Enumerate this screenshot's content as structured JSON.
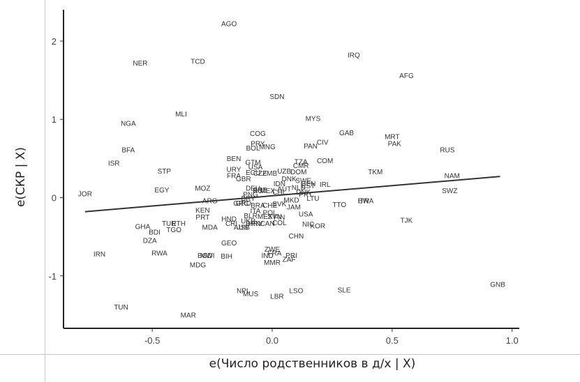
{
  "chart_data": {
    "type": "scatter",
    "xlabel": "e(Число родственников в д/х | X)",
    "ylabel": "e(СКР | X)",
    "xlim": [
      -0.87,
      1.03
    ],
    "ylim": [
      -1.67,
      2.4
    ],
    "xticks": [
      "-0.5",
      "0.0",
      "0.5",
      "1.0"
    ],
    "yticks": [
      "2",
      "1",
      "0",
      "-1"
    ],
    "grid": false,
    "fit_line": {
      "x": [
        -0.78,
        0.95
      ],
      "y": [
        -0.18,
        0.27
      ]
    },
    "points": [
      {
        "label": "AGO",
        "x": -0.18,
        "y": 2.22
      },
      {
        "label": "NER",
        "x": -0.55,
        "y": 1.72
      },
      {
        "label": "TCD",
        "x": -0.31,
        "y": 1.74
      },
      {
        "label": "IRQ",
        "x": 0.34,
        "y": 1.82
      },
      {
        "label": "AFG",
        "x": 0.56,
        "y": 1.56
      },
      {
        "label": "SDN",
        "x": 0.02,
        "y": 1.29
      },
      {
        "label": "MLI",
        "x": -0.38,
        "y": 1.07
      },
      {
        "label": "NGA",
        "x": -0.6,
        "y": 0.95
      },
      {
        "label": "MYS",
        "x": 0.17,
        "y": 1.01
      },
      {
        "label": "GAB",
        "x": 0.31,
        "y": 0.83
      },
      {
        "label": "COG",
        "x": -0.06,
        "y": 0.82
      },
      {
        "label": "MRT",
        "x": 0.5,
        "y": 0.78
      },
      {
        "label": "PAK",
        "x": 0.51,
        "y": 0.69
      },
      {
        "label": "PRY",
        "x": -0.06,
        "y": 0.69
      },
      {
        "label": "CIV",
        "x": 0.21,
        "y": 0.71
      },
      {
        "label": "BOL",
        "x": -0.08,
        "y": 0.63
      },
      {
        "label": "MNG",
        "x": -0.02,
        "y": 0.65
      },
      {
        "label": "PAN",
        "x": 0.16,
        "y": 0.66
      },
      {
        "label": "BFA",
        "x": -0.6,
        "y": 0.61
      },
      {
        "label": "RUS",
        "x": 0.73,
        "y": 0.61
      },
      {
        "label": "BEN",
        "x": -0.16,
        "y": 0.5
      },
      {
        "label": "TZA",
        "x": 0.12,
        "y": 0.46
      },
      {
        "label": "COM",
        "x": 0.22,
        "y": 0.47
      },
      {
        "label": "ISR",
        "x": -0.66,
        "y": 0.44
      },
      {
        "label": "GTM",
        "x": -0.08,
        "y": 0.45
      },
      {
        "label": "CMR",
        "x": 0.12,
        "y": 0.41
      },
      {
        "label": "USA_top",
        "x": -0.07,
        "y": 0.39
      },
      {
        "label": "STP",
        "x": -0.45,
        "y": 0.34
      },
      {
        "label": "URY",
        "x": -0.16,
        "y": 0.36
      },
      {
        "label": "UZB",
        "x": 0.05,
        "y": 0.34
      },
      {
        "label": "TKM",
        "x": 0.43,
        "y": 0.33
      },
      {
        "label": "DOM",
        "x": 0.11,
        "y": 0.33
      },
      {
        "label": "ECU",
        "x": -0.08,
        "y": 0.32
      },
      {
        "label": "CZE",
        "x": -0.05,
        "y": 0.31
      },
      {
        "label": "ZMB",
        "x": -0.01,
        "y": 0.31
      },
      {
        "label": "FRA",
        "x": -0.16,
        "y": 0.28
      },
      {
        "label": "NAM",
        "x": 0.75,
        "y": 0.28
      },
      {
        "label": "GBR",
        "x": -0.12,
        "y": 0.24
      },
      {
        "label": "DNK",
        "x": 0.07,
        "y": 0.24
      },
      {
        "label": "SWE",
        "x": 0.13,
        "y": 0.22
      },
      {
        "label": "IDN",
        "x": 0.03,
        "y": 0.18
      },
      {
        "label": "IRL",
        "x": 0.22,
        "y": 0.17
      },
      {
        "label": "GEN",
        "x": 0.15,
        "y": 0.18
      },
      {
        "label": "EST",
        "x": 0.15,
        "y": 0.15
      },
      {
        "label": "MOZ",
        "x": -0.29,
        "y": 0.12
      },
      {
        "label": "EGY",
        "x": -0.46,
        "y": 0.1
      },
      {
        "label": "NLD",
        "x": 0.11,
        "y": 0.13
      },
      {
        "label": "SWZ",
        "x": 0.74,
        "y": 0.09
      },
      {
        "label": "JOR",
        "x": -0.78,
        "y": 0.05
      },
      {
        "label": "DEU",
        "x": -0.08,
        "y": 0.12
      },
      {
        "label": "AUT",
        "x": 0.05,
        "y": 0.11
      },
      {
        "label": "SRB",
        "x": -0.05,
        "y": 0.1
      },
      {
        "label": "MEX",
        "x": -0.02,
        "y": 0.09
      },
      {
        "label": "RU",
        "x": -0.06,
        "y": 0.09
      },
      {
        "label": "CHL",
        "x": 0.03,
        "y": 0.07
      },
      {
        "label": "DNK2",
        "x": 0.13,
        "y": 0.07
      },
      {
        "label": "PNG",
        "x": -0.09,
        "y": 0.04
      },
      {
        "label": "PRT_b",
        "x": 0.14,
        "y": 0.04
      },
      {
        "label": "BRY",
        "x": -0.1,
        "y": -0.01
      },
      {
        "label": "LTU",
        "x": 0.17,
        "y": -0.01
      },
      {
        "label": "MKD",
        "x": 0.08,
        "y": -0.03
      },
      {
        "label": "BWA",
        "x": 0.39,
        "y": -0.04
      },
      {
        "label": "ITR",
        "x": 0.38,
        "y": -0.04
      },
      {
        "label": "ARG",
        "x": -0.26,
        "y": -0.04
      },
      {
        "label": "GRC",
        "x": -0.13,
        "y": -0.07
      },
      {
        "label": "GRD",
        "x": -0.12,
        "y": -0.07
      },
      {
        "label": "SVK",
        "x": 0.03,
        "y": -0.08
      },
      {
        "label": "TTO",
        "x": 0.28,
        "y": -0.09
      },
      {
        "label": "BRA",
        "x": -0.06,
        "y": -0.1
      },
      {
        "label": "CHE",
        "x": -0.01,
        "y": -0.1
      },
      {
        "label": "JAM",
        "x": 0.09,
        "y": -0.12
      },
      {
        "label": "KEN",
        "x": -0.29,
        "y": -0.16
      },
      {
        "label": "ITA",
        "x": -0.07,
        "y": -0.17
      },
      {
        "label": "POL",
        "x": -0.01,
        "y": -0.19
      },
      {
        "label": "USA",
        "x": 0.14,
        "y": -0.21
      },
      {
        "label": "BLR",
        "x": -0.09,
        "y": -0.23
      },
      {
        "label": "MEX2",
        "x": -0.03,
        "y": -0.24
      },
      {
        "label": "SVN",
        "x": 0.01,
        "y": -0.24
      },
      {
        "label": "PRT",
        "x": -0.29,
        "y": -0.25
      },
      {
        "label": "FIN",
        "x": 0.03,
        "y": -0.25
      },
      {
        "label": "HND",
        "x": -0.18,
        "y": -0.27
      },
      {
        "label": "UKR",
        "x": -0.1,
        "y": -0.3
      },
      {
        "label": "TJK",
        "x": 0.56,
        "y": -0.29
      },
      {
        "label": "TUR",
        "x": -0.43,
        "y": -0.33
      },
      {
        "label": "ETH",
        "x": -0.39,
        "y": -0.33
      },
      {
        "label": "CRI",
        "x": -0.17,
        "y": -0.33
      },
      {
        "label": "BRN",
        "x": -0.08,
        "y": -0.33
      },
      {
        "label": "HRV",
        "x": -0.07,
        "y": -0.33
      },
      {
        "label": "CAN",
        "x": -0.02,
        "y": -0.33
      },
      {
        "label": "COL",
        "x": 0.03,
        "y": -0.32
      },
      {
        "label": "NIC",
        "x": 0.15,
        "y": -0.34
      },
      {
        "label": "KOR",
        "x": 0.19,
        "y": -0.36
      },
      {
        "label": "GHA",
        "x": -0.54,
        "y": -0.37
      },
      {
        "label": "MDA",
        "x": -0.26,
        "y": -0.38
      },
      {
        "label": "JSB",
        "x": -0.12,
        "y": -0.38
      },
      {
        "label": "AUS",
        "x": -0.13,
        "y": -0.38
      },
      {
        "label": "TGO",
        "x": -0.41,
        "y": -0.41
      },
      {
        "label": "BDI",
        "x": -0.49,
        "y": -0.44
      },
      {
        "label": "CHN",
        "x": 0.1,
        "y": -0.49
      },
      {
        "label": "DZA",
        "x": -0.51,
        "y": -0.55
      },
      {
        "label": "GEO",
        "x": -0.18,
        "y": -0.58
      },
      {
        "label": "ZWE",
        "x": 0.0,
        "y": -0.66
      },
      {
        "label": "IRN",
        "x": -0.72,
        "y": -0.72
      },
      {
        "label": "RWA",
        "x": -0.47,
        "y": -0.71
      },
      {
        "label": "FRA2",
        "x": 0.01,
        "y": -0.71
      },
      {
        "label": "IND",
        "x": -0.02,
        "y": -0.74
      },
      {
        "label": "BGD",
        "x": -0.28,
        "y": -0.74
      },
      {
        "label": "MWI",
        "x": -0.27,
        "y": -0.74
      },
      {
        "label": "BIH",
        "x": -0.19,
        "y": -0.75
      },
      {
        "label": "PRI",
        "x": 0.08,
        "y": -0.74
      },
      {
        "label": "ZAF",
        "x": 0.07,
        "y": -0.79
      },
      {
        "label": "MMR",
        "x": 0.0,
        "y": -0.83
      },
      {
        "label": "MDG",
        "x": -0.31,
        "y": -0.86
      },
      {
        "label": "GNB",
        "x": 0.94,
        "y": -1.11
      },
      {
        "label": "NPL",
        "x": -0.12,
        "y": -1.19
      },
      {
        "label": "MUS",
        "x": -0.09,
        "y": -1.23
      },
      {
        "label": "LSO",
        "x": 0.1,
        "y": -1.19
      },
      {
        "label": "SLE",
        "x": 0.3,
        "y": -1.18
      },
      {
        "label": "LBR",
        "x": 0.02,
        "y": -1.26
      },
      {
        "label": "TUN",
        "x": -0.63,
        "y": -1.4
      },
      {
        "label": "MAR",
        "x": -0.35,
        "y": -1.5
      }
    ]
  }
}
